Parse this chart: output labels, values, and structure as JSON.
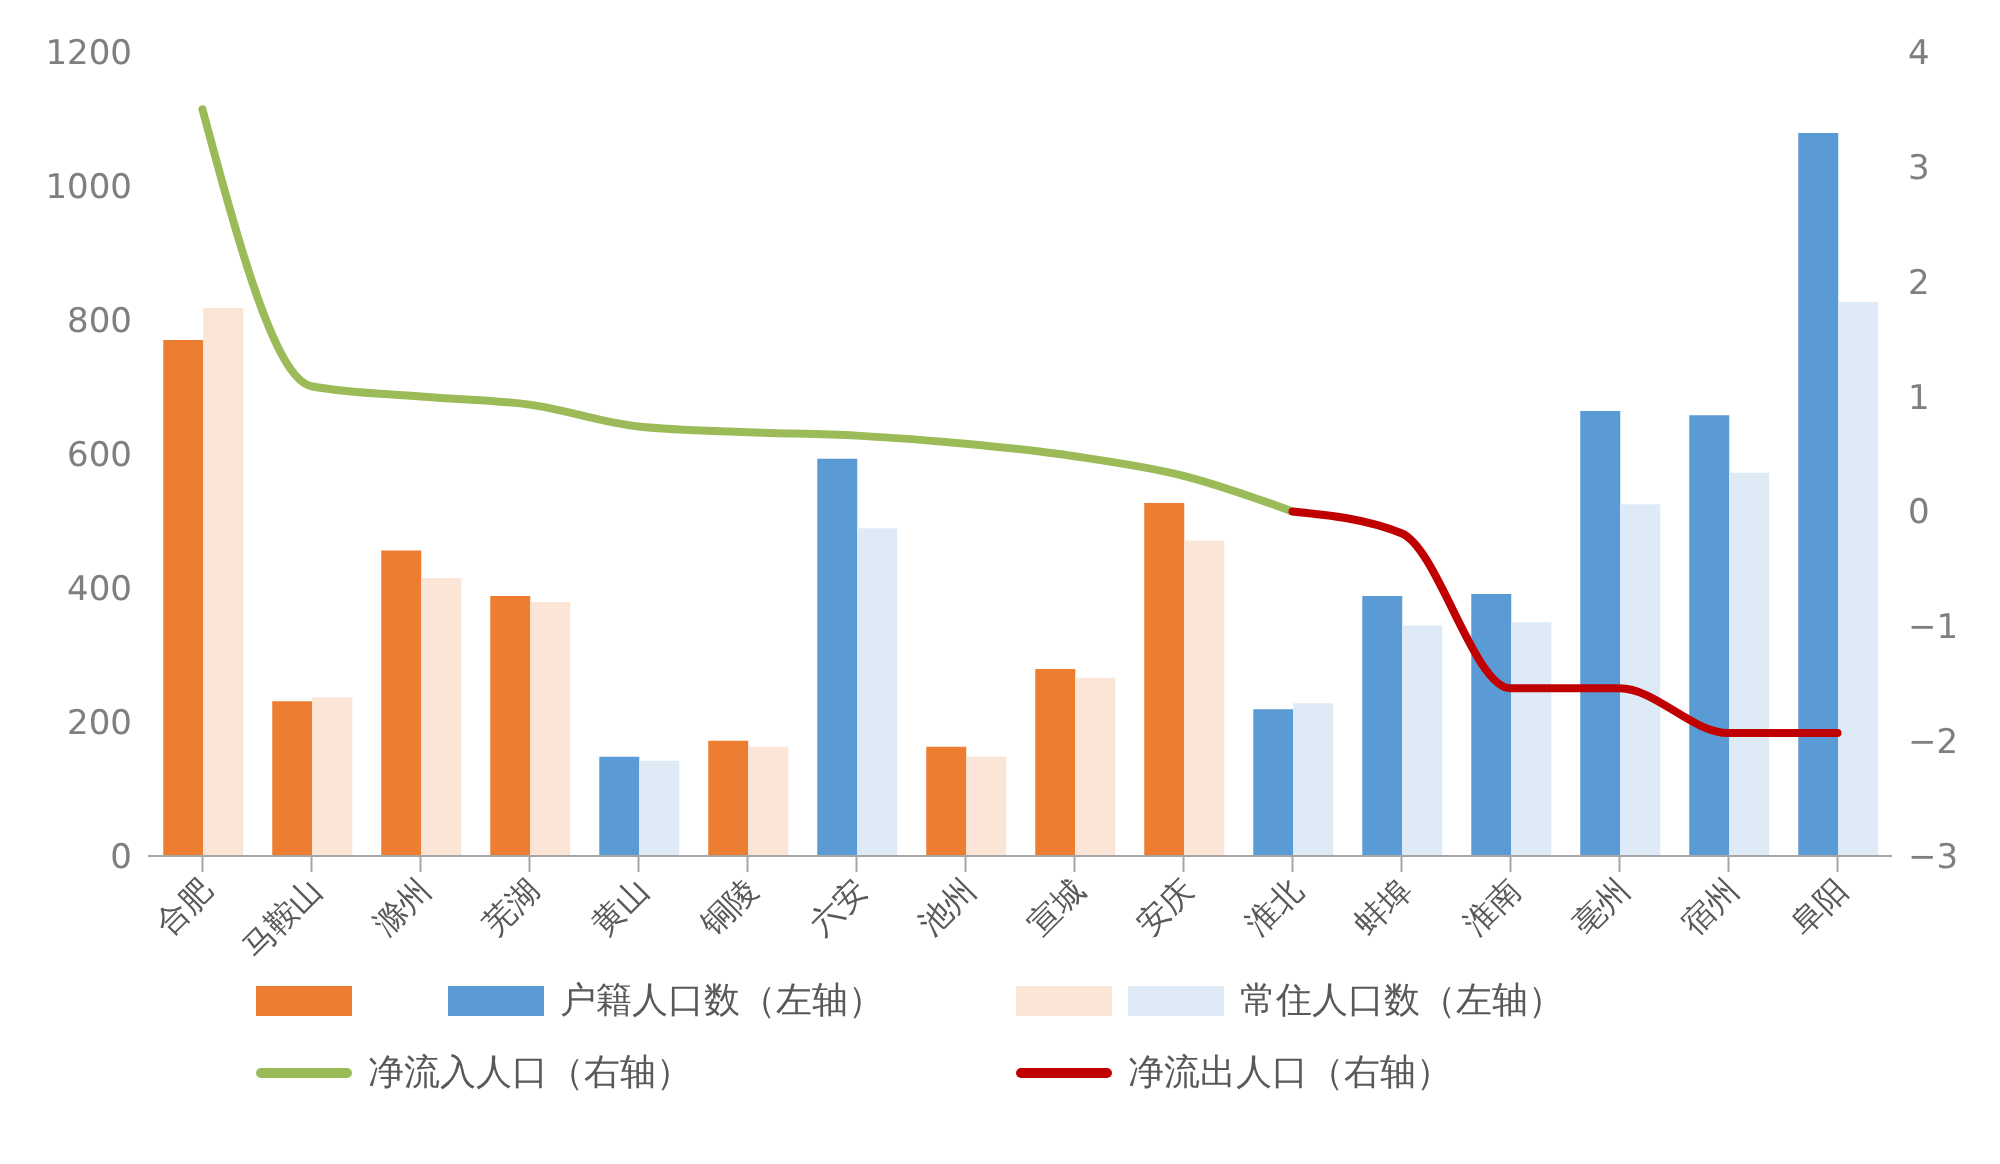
{
  "chart_data": {
    "type": "bar",
    "categories": [
      "合肥",
      "马鞍山",
      "滁州",
      "芜湖",
      "黄山",
      "铜陵",
      "六安",
      "池州",
      "宣城",
      "安庆",
      "淮北",
      "蚌埠",
      "淮南",
      "亳州",
      "宿州",
      "阜阳"
    ],
    "series": [
      {
        "name": "户籍人口数（左轴）",
        "axis": "y",
        "colors": [
          "#ed7d31",
          "#ed7d31",
          "#ed7d31",
          "#ed7d31",
          "#5b9bd5",
          "#ed7d31",
          "#5b9bd5",
          "#ed7d31",
          "#ed7d31",
          "#ed7d31",
          "#5b9bd5",
          "#5b9bd5",
          "#5b9bd5",
          "#5b9bd5",
          "#5b9bd5",
          "#5b9bd5"
        ],
        "values": [
          770,
          231,
          456,
          388,
          148,
          172,
          593,
          163,
          279,
          527,
          219,
          388,
          391,
          664,
          658,
          1079
        ]
      },
      {
        "name": "常住人口数（左轴）",
        "axis": "y",
        "colors": [
          "#fbe5d6",
          "#fbe5d6",
          "#fbe5d6",
          "#fbe5d6",
          "#deebf7",
          "#fbe5d6",
          "#deebf7",
          "#fbe5d6",
          "#fbe5d6",
          "#fbe5d6",
          "#deebf7",
          "#deebf7",
          "#deebf7",
          "#deebf7",
          "#deebf7",
          "#deebf7"
        ],
        "values": [
          818,
          237,
          415,
          379,
          142,
          163,
          489,
          148,
          266,
          471,
          228,
          344,
          349,
          525,
          572,
          827
        ]
      },
      {
        "name": "净流入人口（右轴）",
        "type": "line",
        "axis": "y2",
        "color": "#9bbb59",
        "values": [
          3.5,
          1.09,
          1.0,
          0.93,
          0.74,
          0.69,
          0.66,
          0.59,
          0.48,
          0.31,
          0,
          null,
          null,
          null,
          null,
          null
        ]
      },
      {
        "name": "净流出人口（右轴）",
        "type": "line",
        "axis": "y2",
        "color": "#c00000",
        "values": [
          null,
          null,
          null,
          null,
          null,
          null,
          null,
          null,
          null,
          null,
          0,
          -0.19,
          -1.54,
          -1.54,
          -1.93,
          -1.93
        ]
      }
    ],
    "ylim": [
      0,
      1200
    ],
    "yticks": [
      0,
      200,
      400,
      600,
      800,
      1000,
      1200
    ],
    "y2lim": [
      -3,
      4
    ],
    "y2ticks": [
      {
        "value": -3,
        "label": "−3"
      },
      {
        "value": -2,
        "label": "−2"
      },
      {
        "value": -1,
        "label": "−1"
      },
      0,
      1,
      2,
      3,
      4
    ],
    "grid": false,
    "legend": "bottom",
    "marker": "none",
    "line_style": "solid"
  }
}
